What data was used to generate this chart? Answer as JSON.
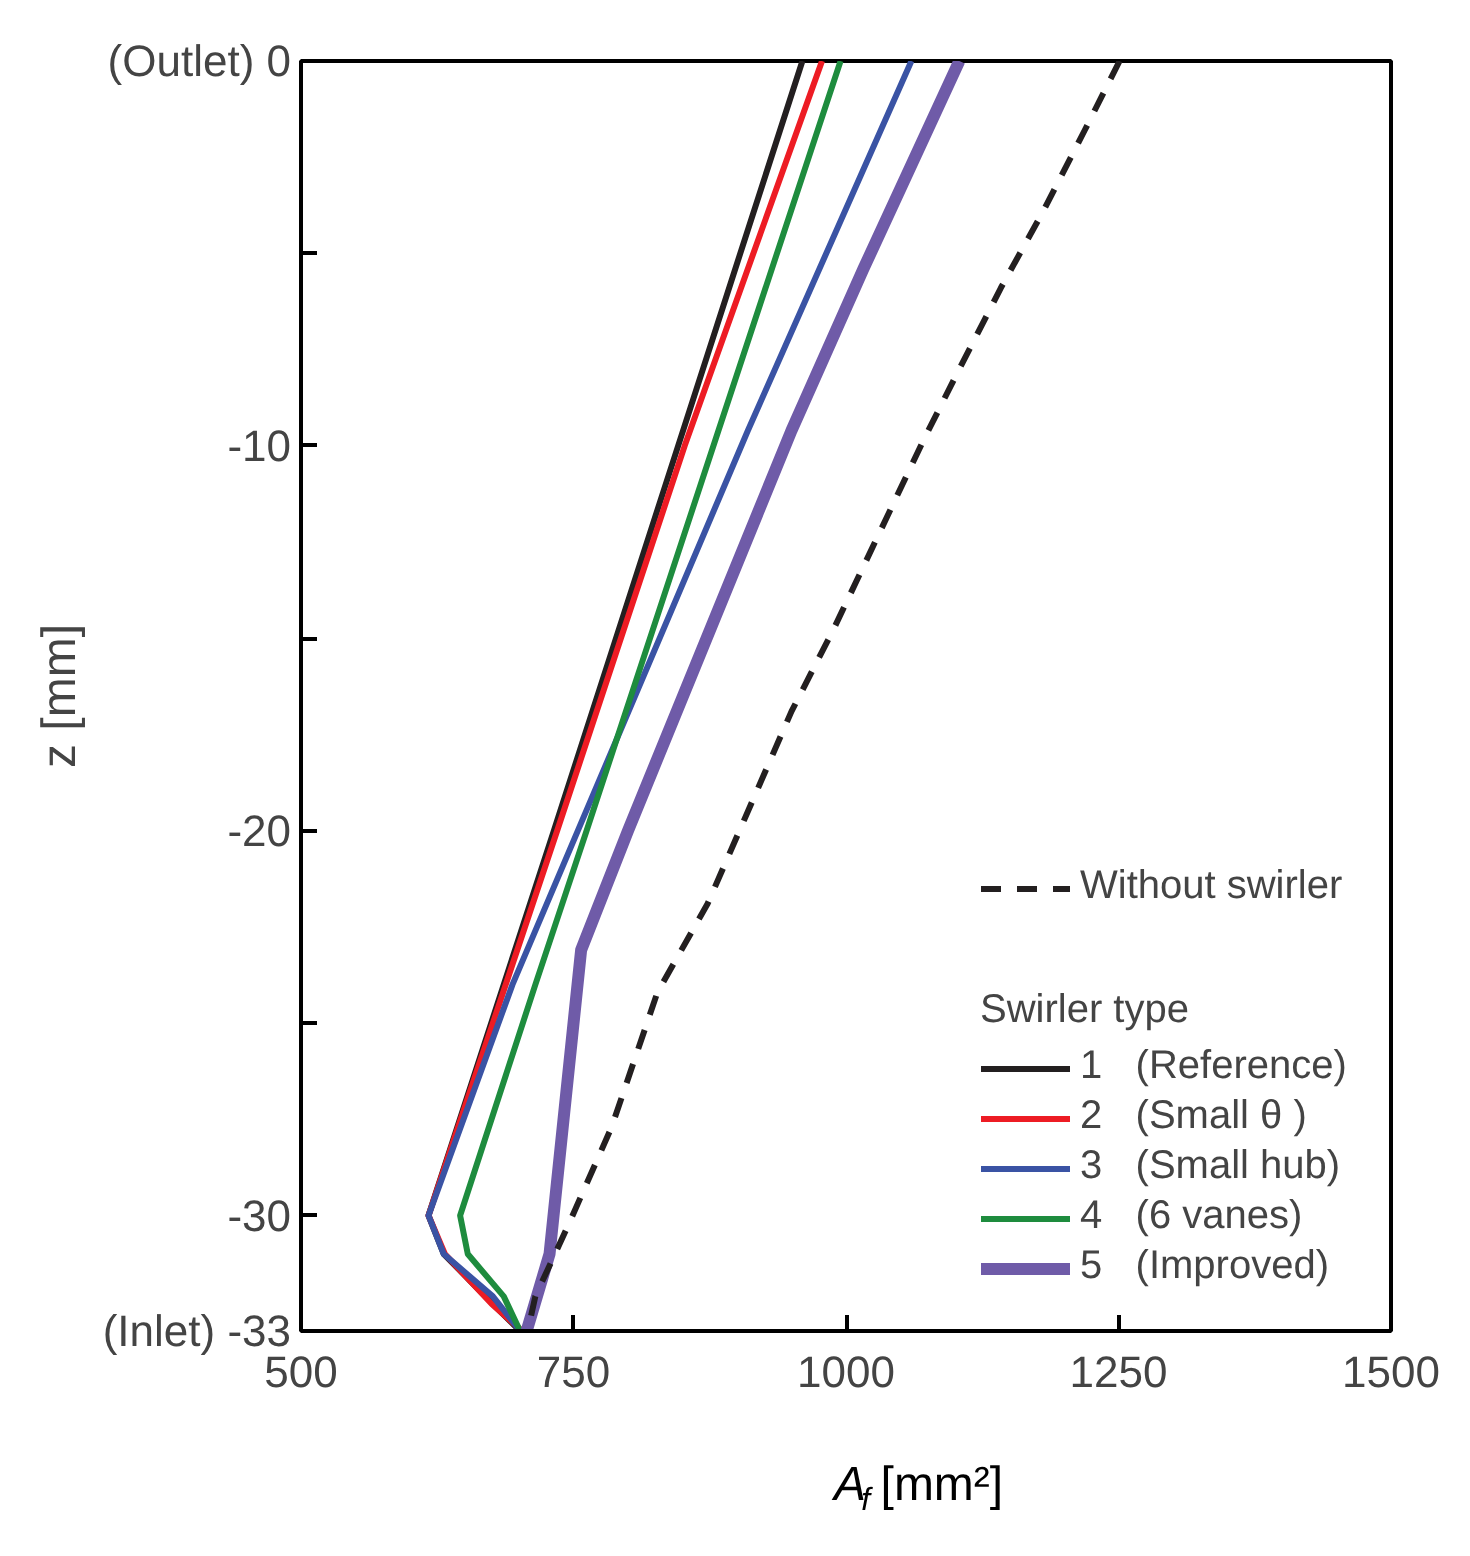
{
  "chart_data": {
    "type": "line",
    "xlabel": "A$_{f}$ [mm²]",
    "ylabel": "z [mm]",
    "legend_title": "Swirler type",
    "xlim": [
      500,
      1500
    ],
    "xticks": [
      500,
      750,
      1000,
      1250,
      1500
    ],
    "ylim": [
      -33,
      0
    ],
    "yticks": [
      {
        "value": 0,
        "label": "(Outlet) 0"
      },
      {
        "value": -5,
        "label": null
      },
      -10,
      {
        "value": -15,
        "label": null
      },
      -20,
      {
        "value": -25,
        "label": null
      },
      -30,
      {
        "value": -33,
        "label": "(Inlet) -33"
      }
    ],
    "grid": false,
    "legend": "bottom right",
    "marker": "none",
    "series": [
      {
        "name": "Without swirler",
        "color": "#231f20",
        "line_style": "dashed",
        "x": [
          1251,
          1219,
          1181,
          1142,
          1104,
          1072,
          988,
          950,
          873,
          827,
          785,
          746,
          715,
          708
        ],
        "values": [
          0,
          -1.8,
          -3.9,
          -5.9,
          -8,
          -9.8,
          -14.8,
          -16.9,
          -21.9,
          -24.2,
          -27.7,
          -30.2,
          -32.1,
          -33
        ]
      },
      {
        "name": "1   (Reference)",
        "color": "#231f20",
        "x": [
          960,
          846,
          732,
          617,
          631,
          676,
          701
        ],
        "values": [
          0,
          -10,
          -20,
          -30,
          -31,
          -32.3,
          -33
        ]
      },
      {
        "name": "2   (Small θ )",
        "color": "#ed1c24",
        "x": [
          978,
          852,
          735,
          617,
          632,
          675,
          703
        ],
        "values": [
          0,
          -10,
          -20,
          -30,
          -31,
          -32.3,
          -33
        ]
      },
      {
        "name": "3   (Small hub)",
        "color": "#3a53a4",
        "x": [
          1060,
          910,
          754,
          694,
          617,
          631,
          676,
          701
        ],
        "values": [
          0,
          -9.6,
          -20,
          -24,
          -30,
          -31,
          -32.1,
          -33
        ]
      },
      {
        "name": "4   (6 vanes)",
        "color": "#1e8c3e",
        "x": [
          995,
          883,
          762,
          715,
          646,
          653,
          686,
          701
        ],
        "values": [
          0,
          -9.6,
          -20,
          -24,
          -30,
          -31,
          -32.1,
          -33
        ]
      },
      {
        "name": "5   (Improved)",
        "color": "#6f5ba8",
        "x": [
          1104,
          1016,
          950,
          800,
          757,
          728,
          707
        ],
        "values": [
          0,
          -5.4,
          -9.6,
          -20,
          -23.1,
          -31,
          -33
        ]
      }
    ]
  }
}
